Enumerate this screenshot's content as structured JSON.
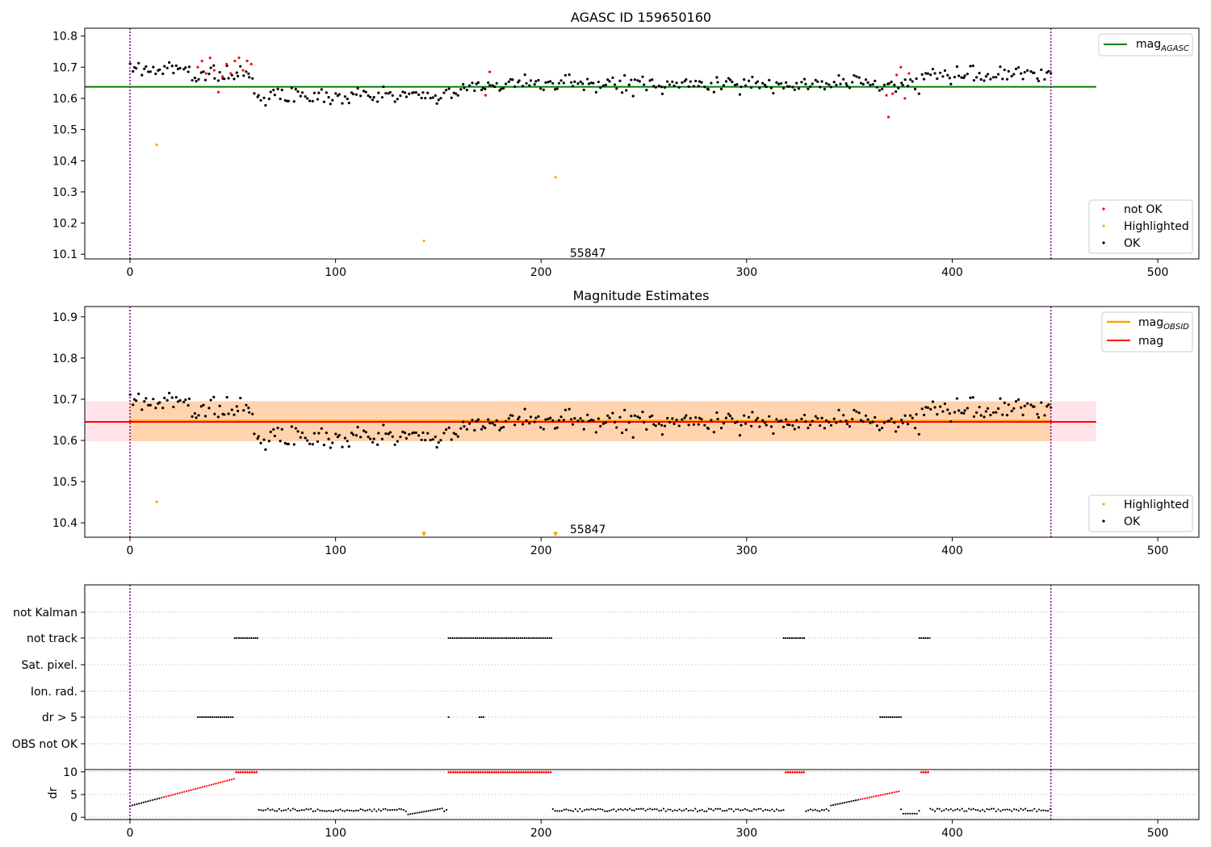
{
  "figure": {
    "width": 1500,
    "height": 1050
  },
  "chart_data": [
    {
      "type": "scatter",
      "title": "AGASC ID 159650160",
      "xlabel": "",
      "ylabel": "",
      "xlim": [
        -22,
        520
      ],
      "ylim": [
        10.085,
        10.825
      ],
      "xticks": [
        0,
        100,
        200,
        300,
        400,
        500
      ],
      "xtick_labels": [
        "0",
        "100",
        "200",
        "300",
        "400",
        "500"
      ],
      "yticks": [
        10.1,
        10.2,
        10.3,
        10.4,
        10.5,
        10.6,
        10.7,
        10.8
      ],
      "ytick_labels": [
        "10.1",
        "10.2",
        "10.3",
        "10.4",
        "10.5",
        "10.6",
        "10.7",
        "10.8"
      ],
      "vlines": [
        0,
        448
      ],
      "annotation": {
        "text": "55847",
        "x": 214,
        "y": 10.105
      },
      "lines": [
        {
          "name": "mag",
          "subscript": "AGASC",
          "y": 10.637,
          "x": [
            -22,
            470
          ],
          "color": "#008000"
        }
      ],
      "highlighted": {
        "x": [
          13,
          207,
          143
        ],
        "y": [
          10.451,
          10.347,
          10.143
        ]
      },
      "not_ok": {
        "x": [
          33,
          35,
          37,
          39,
          41,
          43,
          45,
          47,
          49,
          51,
          53,
          55,
          57,
          59,
          173,
          175,
          368,
          369,
          371,
          373,
          375,
          377,
          379
        ],
        "y": [
          10.7,
          10.72,
          10.68,
          10.73,
          10.69,
          10.62,
          10.67,
          10.71,
          10.68,
          10.72,
          10.73,
          10.69,
          10.72,
          10.71,
          10.61,
          10.685,
          10.61,
          10.54,
          10.615,
          10.675,
          10.7,
          10.6,
          10.68
        ]
      },
      "ok": {
        "n": 400,
        "x_start": 0,
        "x_end": 448,
        "baseline": 10.645,
        "scatter": 0.045
      },
      "legend": {
        "upper_right": [
          "mag AGASC"
        ],
        "lower_right": [
          "not OK",
          "Highlighted",
          "OK"
        ]
      }
    },
    {
      "type": "scatter",
      "title": "Magnitude Estimates",
      "xlabel": "",
      "ylabel": "",
      "xlim": [
        -22,
        520
      ],
      "ylim": [
        10.365,
        10.925
      ],
      "xticks": [
        0,
        100,
        200,
        300,
        400,
        500
      ],
      "xtick_labels": [
        "0",
        "100",
        "200",
        "300",
        "400",
        "500"
      ],
      "yticks": [
        10.4,
        10.5,
        10.6,
        10.7,
        10.8,
        10.9
      ],
      "ytick_labels": [
        "10.4",
        "10.5",
        "10.6",
        "10.7",
        "10.8",
        "10.9"
      ],
      "vlines": [
        0,
        448
      ],
      "annotation": {
        "text": "55847",
        "x": 214,
        "y": 10.385
      },
      "bands": [
        {
          "x": [
            -22,
            470
          ],
          "y": [
            10.598,
            10.695
          ],
          "color": "#ffc0cb"
        },
        {
          "x": [
            0,
            448
          ],
          "y": [
            10.598,
            10.695
          ],
          "color": "#ffa500"
        }
      ],
      "lines": [
        {
          "name": "mag",
          "subscript": "OBSID",
          "y": 10.647,
          "x": [
            0,
            448
          ],
          "color": "#ffa500"
        },
        {
          "name": "mag",
          "y": 10.645,
          "x": [
            -22,
            470
          ],
          "color": "#ff0000"
        }
      ],
      "highlighted": {
        "x": [
          13
        ],
        "y": [
          10.451
        ]
      },
      "highlighted_offscale": {
        "x": [
          143,
          207
        ],
        "y": [
          10.372,
          10.372
        ]
      },
      "ok": {
        "n": 400,
        "x_start": 0,
        "x_end": 448,
        "baseline": 10.645,
        "scatter": 0.045
      },
      "legend": {
        "upper_right": [
          "mag OBSID",
          "mag"
        ],
        "lower_right": [
          "Highlighted",
          "OK"
        ]
      }
    },
    {
      "type": "scatter",
      "title": "",
      "xlabel": "",
      "ylabel": "",
      "xlim": [
        -22,
        520
      ],
      "xticks": [
        0,
        100,
        200,
        300,
        400,
        500
      ],
      "xtick_labels": [
        "0",
        "100",
        "200",
        "300",
        "400",
        "500"
      ],
      "vlines": [
        0,
        448
      ],
      "flag_rows": [
        "not Kalman",
        "not track",
        "Sat. pixel.",
        "Ion. rad.",
        "dr > 5",
        "OBS not OK"
      ],
      "flag_ranges": {
        "not track": [
          [
            51,
            62
          ],
          [
            155,
            205
          ],
          [
            318,
            328
          ],
          [
            384,
            389
          ]
        ],
        "dr > 5": [
          [
            33,
            50
          ],
          [
            155,
            155
          ],
          [
            170,
            172
          ],
          [
            365,
            375
          ]
        ]
      }
    },
    {
      "type": "scatter",
      "title": "",
      "xlabel": "",
      "ylabel": "dr",
      "xlim": [
        -22,
        520
      ],
      "ylim": [
        -0.5,
        10.5
      ],
      "yticks": [
        0,
        5,
        10
      ],
      "ytick_labels": [
        "0",
        "5",
        "10"
      ],
      "vlines": [
        0,
        448
      ],
      "dr_red_ranges": [
        [
          51,
          62
        ],
        [
          155,
          205
        ],
        [
          318,
          328
        ],
        [
          384,
          389
        ]
      ],
      "dr_ramps": [
        {
          "x": [
            0,
            51
          ],
          "y": [
            2.5,
            8.5
          ]
        },
        {
          "x": [
            340,
            375
          ],
          "y": [
            2.5,
            5.8
          ]
        }
      ]
    }
  ]
}
